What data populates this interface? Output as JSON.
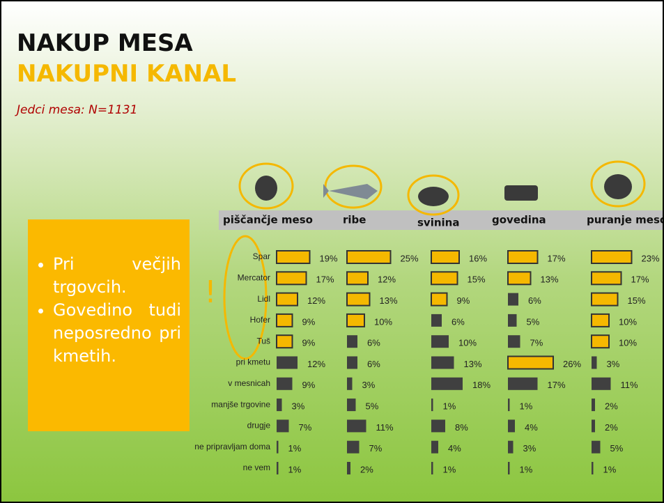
{
  "title": "NAKUP MESA",
  "subtitle": "NAKUPNI KANAL",
  "note": "Jedci mesa: N=1131",
  "callout": [
    "Pri večjih trgovcih.",
    "Govedino tudi neposredno pri kmetih."
  ],
  "chart_data": {
    "type": "bar",
    "orientation": "horizontal",
    "categories": [
      "Spar",
      "Mercator",
      "Lidl",
      "Hofer",
      "Tuš",
      "pri kmetu",
      "v mesnicah",
      "manjše trgovine",
      "drugje",
      "ne pripravljam doma",
      "ne vem"
    ],
    "series": [
      {
        "name": "piščančje meso",
        "values": [
          19,
          17,
          12,
          9,
          9,
          12,
          9,
          3,
          7,
          1,
          1
        ],
        "value_labels": [
          "19%",
          "17%",
          "12%",
          "9%",
          "9%",
          "12%",
          "9%",
          "3%",
          "7%",
          "1%",
          "1%"
        ],
        "colors": [
          "#f5b800",
          "#f5b800",
          "#f5b800",
          "#f5b800",
          "#f5b800",
          "#404040",
          "#404040",
          "#404040",
          "#404040",
          "#404040",
          "#404040"
        ]
      },
      {
        "name": "ribe",
        "values": [
          25,
          12,
          13,
          10,
          6,
          6,
          3,
          5,
          11,
          7,
          2
        ],
        "value_labels": [
          "25%",
          "12%",
          "13%",
          "10%",
          "6%",
          "6%",
          "3%",
          "5%",
          "11%",
          "7%",
          "2%"
        ],
        "colors": [
          "#f5b800",
          "#f5b800",
          "#f5b800",
          "#f5b800",
          "#404040",
          "#404040",
          "#404040",
          "#404040",
          "#404040",
          "#404040",
          "#404040"
        ]
      },
      {
        "name": "svinina",
        "values": [
          16,
          15,
          9,
          6,
          10,
          13,
          18,
          1,
          8,
          4,
          1
        ],
        "value_labels": [
          "16%",
          "15%",
          "9%",
          "6%",
          "10%",
          "13%",
          "18%",
          "1%",
          "8%",
          "4%",
          "1%"
        ],
        "colors": [
          "#f5b800",
          "#f5b800",
          "#f5b800",
          "#404040",
          "#404040",
          "#404040",
          "#404040",
          "#404040",
          "#404040",
          "#404040",
          "#404040"
        ]
      },
      {
        "name": "govedina",
        "values": [
          17,
          13,
          6,
          5,
          7,
          26,
          17,
          1,
          4,
          3,
          1
        ],
        "value_labels": [
          "17%",
          "13%",
          "6%",
          "5%",
          "7%",
          "26%",
          "17%",
          "1%",
          "4%",
          "3%",
          "1%"
        ],
        "colors": [
          "#f5b800",
          "#f5b800",
          "#404040",
          "#404040",
          "#404040",
          "#f5b800",
          "#404040",
          "#404040",
          "#404040",
          "#404040",
          "#404040"
        ]
      },
      {
        "name": "puranje meso",
        "values": [
          23,
          17,
          15,
          10,
          10,
          3,
          11,
          2,
          2,
          5,
          1
        ],
        "value_labels": [
          "23%",
          "17%",
          "15%",
          "10%",
          "10%",
          "3%",
          "11%",
          "2%",
          "2%",
          "5%",
          "1%"
        ],
        "colors": [
          "#f5b800",
          "#f5b800",
          "#f5b800",
          "#f5b800",
          "#f5b800",
          "#404040",
          "#404040",
          "#404040",
          "#404040",
          "#404040",
          "#404040"
        ]
      }
    ]
  }
}
